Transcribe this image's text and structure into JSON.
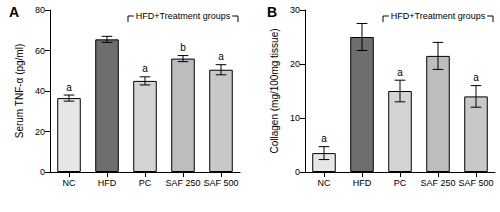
{
  "chart_data": [
    {
      "type": "bar",
      "title": "A",
      "y_label": "Serum TNF-α (pg/ml)",
      "categories": [
        "NC",
        "HFD",
        "PC",
        "SAF 250",
        "SAF 500"
      ],
      "values": [
        36.5,
        65.5,
        45,
        56,
        50.5
      ],
      "errors": [
        1.5,
        1.5,
        2,
        1.5,
        2.5
      ],
      "colors": [
        "#e6e6e6",
        "#6e6e6e",
        "#d4d4d4",
        "#bdbdbd",
        "#c8c8c8"
      ],
      "ylim": [
        0,
        80
      ],
      "yticks": [
        0,
        20,
        40,
        60,
        80
      ],
      "grid": false,
      "annotations": [
        {
          "category": "NC",
          "text": "a"
        },
        {
          "category": "PC",
          "text": "a"
        },
        {
          "category": "SAF 250",
          "text": "b"
        },
        {
          "category": "SAF 500",
          "text": "a"
        }
      ],
      "bracket": {
        "text": "HFD+Treatment groups",
        "from": "PC",
        "to": "SAF 500"
      }
    },
    {
      "type": "bar",
      "title": "B",
      "y_label": "Collagen (mg/100mg tissue)",
      "categories": [
        "NC",
        "HFD",
        "PC",
        "SAF 250",
        "SAF 500"
      ],
      "values": [
        3.5,
        25,
        15,
        21.5,
        14
      ],
      "errors": [
        1.2,
        2.5,
        2,
        2.5,
        2
      ],
      "colors": [
        "#e6e6e6",
        "#6e6e6e",
        "#d4d4d4",
        "#bdbdbd",
        "#c8c8c8"
      ],
      "ylim": [
        0,
        30
      ],
      "yticks": [
        0,
        10,
        20,
        30
      ],
      "grid": false,
      "annotations": [
        {
          "category": "NC",
          "text": "a"
        },
        {
          "category": "PC",
          "text": "a"
        },
        {
          "category": "SAF 500",
          "text": "a"
        }
      ],
      "bracket": {
        "text": "HFD+Treatment groups",
        "from": "PC",
        "to": "SAF 500"
      }
    }
  ]
}
